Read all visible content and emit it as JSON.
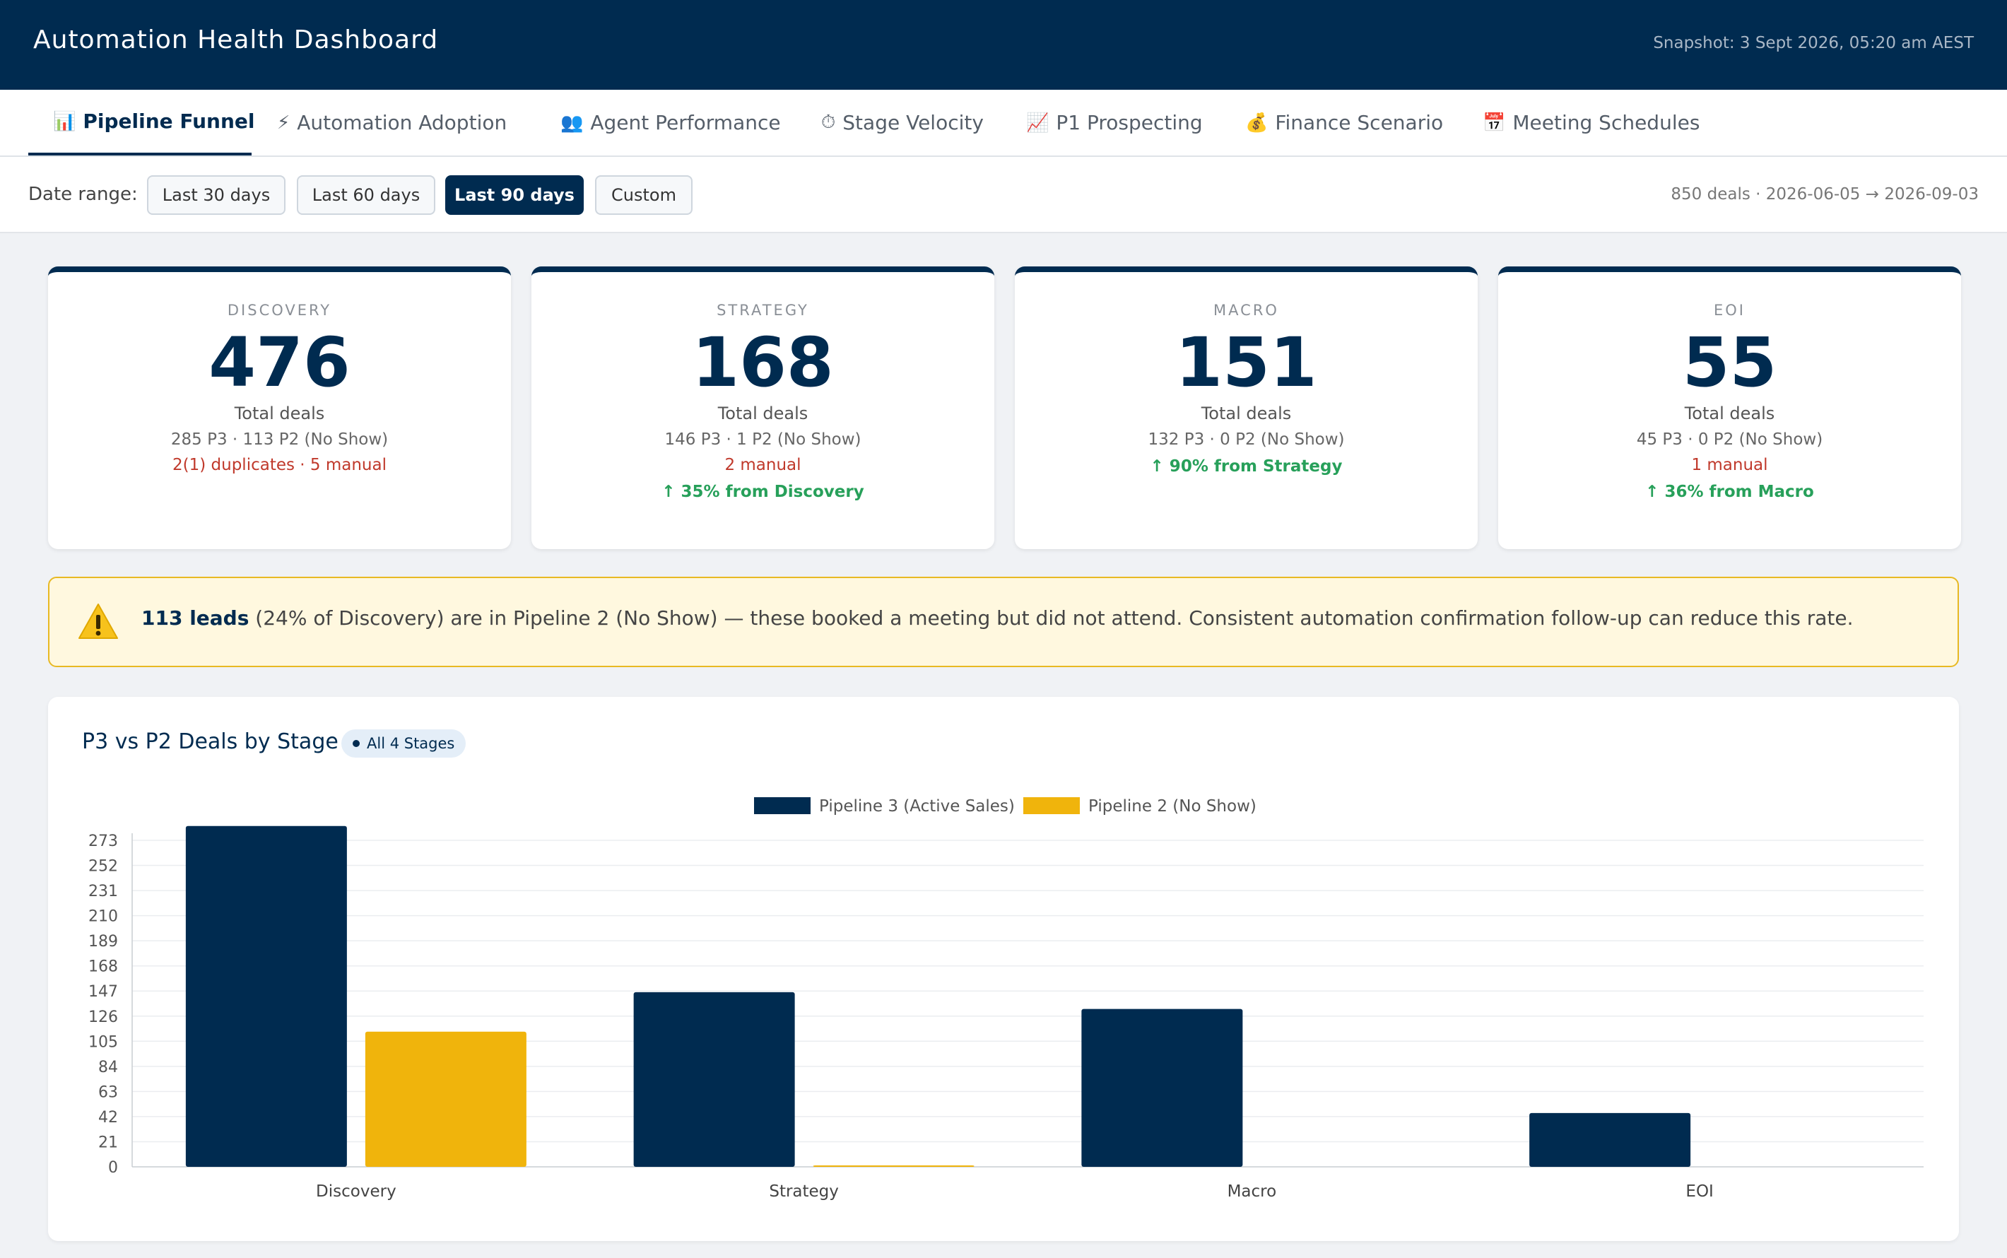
{
  "header": {
    "title": "Automation Health Dashboard",
    "snapshot": "Snapshot: 3 Sept 2026, 05:20 am AEST"
  },
  "tabs": [
    {
      "icon": "📊",
      "icon_name": "bar-chart-icon",
      "label": "Pipeline Funnel",
      "active": true
    },
    {
      "icon": "⚡",
      "icon_name": "lightning-icon",
      "label": "Automation Adoption"
    },
    {
      "icon": "👥",
      "icon_name": "people-icon",
      "label": "Agent Performance"
    },
    {
      "icon": "⏱",
      "icon_name": "stopwatch-icon",
      "label": "Stage Velocity"
    },
    {
      "icon": "📈",
      "icon_name": "trend-up-icon",
      "label": "P1 Prospecting"
    },
    {
      "icon": "💰",
      "icon_name": "money-bag-icon",
      "label": "Finance Scenario"
    },
    {
      "icon": "📅",
      "icon_name": "calendar-icon",
      "label": "Meeting Schedules"
    }
  ],
  "filters": {
    "label": "Date range:",
    "ranges": [
      "Last 30 days",
      "Last 60 days",
      "Last 90 days",
      "Custom"
    ],
    "selected": "Last 90 days",
    "deal_range": "850 deals · 2026-06-05 → 2026-09-03"
  },
  "cards": [
    {
      "label": "DISCOVERY",
      "value": "476",
      "sub": "Total deals",
      "detail": "285 P3 · 113 P2 (No Show)",
      "warn": "2(1) duplicates · 5 manual",
      "up": ""
    },
    {
      "label": "STRATEGY",
      "value": "168",
      "sub": "Total deals",
      "detail": "146 P3 · 1 P2 (No Show)",
      "warn": "2 manual",
      "up": "↑ 35% from Discovery"
    },
    {
      "label": "MACRO",
      "value": "151",
      "sub": "Total deals",
      "detail": "132 P3 · 0 P2 (No Show)",
      "warn": "",
      "up": "↑ 90% from Strategy"
    },
    {
      "label": "EOI",
      "value": "55",
      "sub": "Total deals",
      "detail": "45 P3 · 0 P2 (No Show)",
      "warn": "1 manual",
      "up": "↑ 36% from Macro"
    }
  ],
  "alert": {
    "icon": "warning-icon",
    "bold": "113 leads",
    "text": " (24% of Discovery) are in Pipeline 2 (No Show) — these booked a meeting but did not attend. Consistent automation confirmation follow-up can reduce this rate."
  },
  "chart_panel": {
    "title": "P3 vs P2 Deals by Stage",
    "badge": "All 4 Stages"
  },
  "chart_data": {
    "type": "bar",
    "categories": [
      "Discovery",
      "Strategy",
      "Macro",
      "EOI"
    ],
    "series": [
      {
        "name": "Pipeline 3 (Active Sales)",
        "values": [
          285,
          146,
          132,
          45
        ],
        "color": "#002b50"
      },
      {
        "name": "Pipeline 2 (No Show)",
        "values": [
          113,
          1,
          0,
          0
        ],
        "color": "#f0b40c"
      }
    ],
    "yticks": [
      0,
      21,
      42,
      63,
      84,
      105,
      126,
      147,
      168,
      189,
      210,
      231,
      252,
      273
    ],
    "ylim": [
      0,
      273
    ],
    "grid": true,
    "legend": "top-center"
  }
}
